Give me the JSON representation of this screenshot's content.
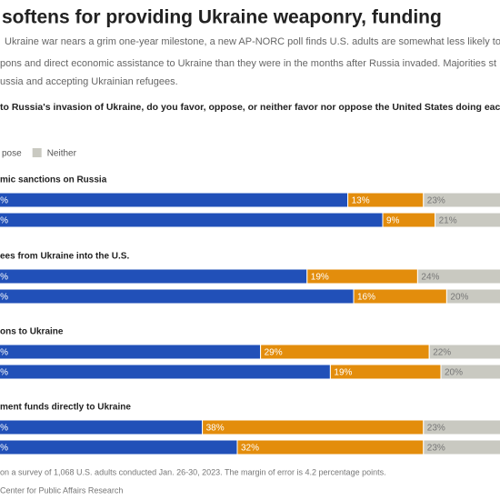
{
  "chart_data": {
    "type": "stacked_bar",
    "title": "softens for providing Ukraine weaponry, funding",
    "subtitle": [
      "Ukraine war nears a grim one-year milestone, a new AP-NORC poll finds U.S. adults are somewhat less likely to s",
      "pons and direct economic assistance to Ukraine than they were in the months after Russia invaded. Majorities st",
      "ussia and accepting Ukrainian refugees."
    ],
    "question": "to Russia's invasion of Ukraine, do you favor, oppose, or neither favor nor oppose the United States doing each o",
    "group_labels": [
      "mic sanctions on Russia",
      "ees from Ukraine into the U.S.",
      "ons to Ukraine",
      "ment funds directly to Ukraine"
    ],
    "xlim": [
      0,
      100
    ],
    "series": [
      {
        "name": null,
        "color": "#2150b8",
        "values": [
          64,
          70,
          57,
          65,
          49,
          61,
          39,
          45
        ],
        "value_labels": [
          "%",
          "%",
          "%",
          "%",
          "%",
          "%",
          "%",
          "%"
        ]
      },
      {
        "name": "pose",
        "color": "#e38d0c",
        "values": [
          13,
          9,
          19,
          16,
          29,
          19,
          38,
          32
        ],
        "value_labels": [
          "13%",
          "9%",
          "19%",
          "16%",
          "29%",
          "19%",
          "38%",
          "32%"
        ]
      },
      {
        "name": "Neither",
        "color": "#c9c9c1",
        "values": [
          23,
          21,
          24,
          20,
          22,
          20,
          23,
          23
        ],
        "value_labels": [
          "23%",
          "21%",
          "24%",
          "20%",
          "22%",
          "20%",
          "23%",
          "23%"
        ]
      }
    ],
    "notes": [
      "on a survey of 1,068 U.S. adults conducted Jan. 26-30, 2023. The margin of error is 4.2 percentage points.",
      "Center for Public Affairs Research"
    ]
  }
}
